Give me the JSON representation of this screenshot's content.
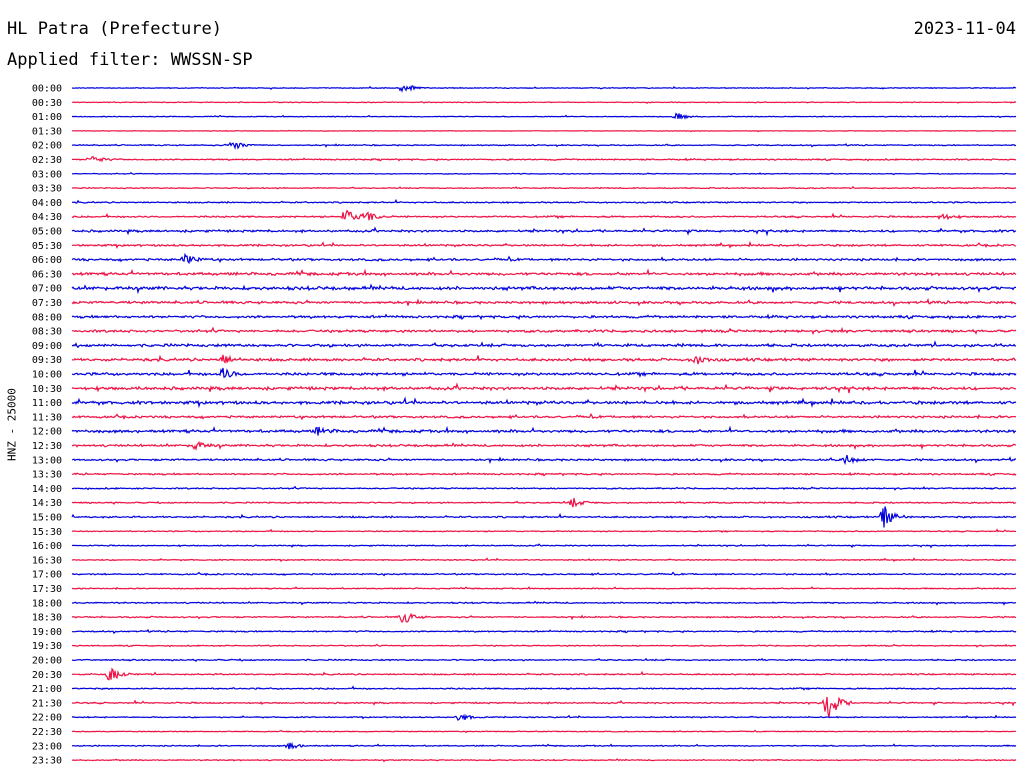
{
  "header": {
    "station": "HL Patra (Prefecture)",
    "date": "2023-11-04",
    "filter": "Applied filter: WWSSN-SP"
  },
  "axis": {
    "channel_label": "HNZ - 25000"
  },
  "colors": {
    "even_trace": "#0000dd",
    "odd_trace": "#ee1144"
  },
  "chart_data": {
    "type": "line",
    "title": "HL Patra (Prefecture)",
    "xlabel": "",
    "ylabel": "HNZ - 25000",
    "row_labels": [
      "00:00",
      "00:30",
      "01:00",
      "01:30",
      "02:00",
      "02:30",
      "03:00",
      "03:30",
      "04:00",
      "04:30",
      "05:00",
      "05:30",
      "06:00",
      "06:30",
      "07:00",
      "07:30",
      "08:00",
      "08:30",
      "09:00",
      "09:30",
      "10:00",
      "10:30",
      "11:00",
      "11:30",
      "12:00",
      "12:30",
      "13:00",
      "13:30",
      "14:00",
      "14:30",
      "15:00",
      "15:30",
      "16:00",
      "16:30",
      "17:00",
      "17:30",
      "18:00",
      "18:30",
      "19:00",
      "19:30",
      "20:00",
      "20:30",
      "21:00",
      "21:30",
      "22:00",
      "22:30",
      "23:00",
      "23:30"
    ],
    "noise_level": [
      0.3,
      0.3,
      0.3,
      0.2,
      0.4,
      0.5,
      0.3,
      0.4,
      0.5,
      0.6,
      0.8,
      0.7,
      0.8,
      1.0,
      1.2,
      0.9,
      0.9,
      0.9,
      1.0,
      1.0,
      1.0,
      1.1,
      1.1,
      0.8,
      1.0,
      0.8,
      0.7,
      0.6,
      0.5,
      0.5,
      0.6,
      0.4,
      0.4,
      0.4,
      0.5,
      0.4,
      0.5,
      0.5,
      0.5,
      0.4,
      0.5,
      0.5,
      0.5,
      0.5,
      0.4,
      0.3,
      0.4,
      0.4
    ],
    "events": [
      {
        "row": 0,
        "t": 0.35,
        "amp": 6
      },
      {
        "row": 2,
        "t": 0.64,
        "amp": 4
      },
      {
        "row": 4,
        "t": 0.17,
        "amp": 6
      },
      {
        "row": 5,
        "t": 0.02,
        "amp": 5
      },
      {
        "row": 9,
        "t": 0.29,
        "amp": 9
      },
      {
        "row": 9,
        "t": 0.31,
        "amp": 7
      },
      {
        "row": 9,
        "t": 0.92,
        "amp": 4
      },
      {
        "row": 12,
        "t": 0.12,
        "amp": 6
      },
      {
        "row": 19,
        "t": 0.16,
        "amp": 5
      },
      {
        "row": 19,
        "t": 0.66,
        "amp": 6
      },
      {
        "row": 20,
        "t": 0.16,
        "amp": 6
      },
      {
        "row": 24,
        "t": 0.26,
        "amp": 4
      },
      {
        "row": 25,
        "t": 0.13,
        "amp": 5
      },
      {
        "row": 26,
        "t": 0.82,
        "amp": 5
      },
      {
        "row": 29,
        "t": 0.53,
        "amp": 5
      },
      {
        "row": 30,
        "t": 0.86,
        "amp": 12
      },
      {
        "row": 37,
        "t": 0.35,
        "amp": 8
      },
      {
        "row": 41,
        "t": 0.04,
        "amp": 8
      },
      {
        "row": 43,
        "t": 0.8,
        "amp": 22
      },
      {
        "row": 44,
        "t": 0.41,
        "amp": 5
      },
      {
        "row": 46,
        "t": 0.23,
        "amp": 4
      }
    ]
  }
}
